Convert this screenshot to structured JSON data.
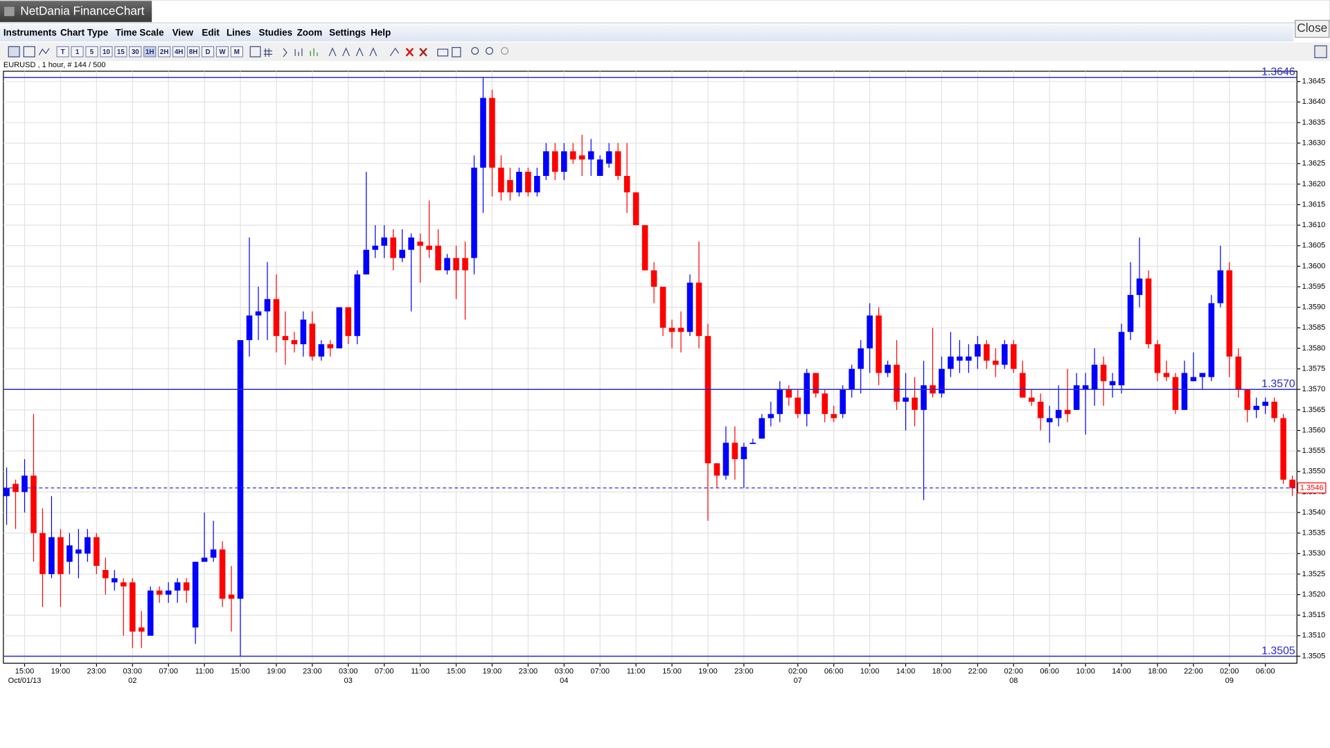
{
  "window": {
    "title": "NetDania FinanceChart",
    "close": "Close"
  },
  "menu": [
    "Instruments",
    "Chart Type",
    "Time Scale",
    "View",
    "Edit",
    "Lines",
    "Studies",
    "Zoom",
    "Settings",
    "Help"
  ],
  "toolbar": {
    "timescales": [
      "T",
      "1",
      "5",
      "10",
      "15",
      "30",
      "1H",
      "2H",
      "4H",
      "8H",
      "D",
      "W",
      "M"
    ]
  },
  "chart_data": {
    "type": "candlestick",
    "title": "EURUSD , 1 hour, # 144 / 500",
    "up_color": "#0000ff",
    "down_color": "#ff0000",
    "line_color": "#2a2acc",
    "grid": true,
    "categories": [
      null,
      null,
      "15:00",
      null,
      null,
      null,
      "19:00",
      null,
      null,
      null,
      "23:00",
      null,
      null,
      null,
      "03:00",
      null,
      null,
      null,
      "07:00",
      null,
      null,
      null,
      "11:00",
      null,
      null,
      null,
      "15:00",
      null,
      null,
      null,
      "19:00",
      null,
      null,
      null,
      "23:00",
      null,
      null,
      null,
      "03:00",
      null,
      null,
      null,
      "07:00",
      null,
      null,
      null,
      "11:00",
      null,
      null,
      null,
      "15:00",
      null,
      null,
      null,
      "19:00",
      null,
      null,
      null,
      "23:00",
      null,
      null,
      null,
      "03:00",
      null,
      null,
      null,
      "07:00",
      null,
      null,
      null,
      "11:00",
      null,
      null,
      null,
      "15:00",
      null,
      null,
      null,
      "19:00",
      null,
      null,
      null,
      "23:00",
      null,
      null,
      null,
      null,
      null,
      "02:00",
      null,
      null,
      null,
      "06:00",
      null,
      null,
      null,
      "10:00",
      null,
      null,
      null,
      "14:00",
      null,
      null,
      null,
      "18:00",
      null,
      null,
      null,
      "22:00",
      null,
      null,
      null,
      "02:00",
      null,
      null,
      null,
      "06:00",
      null,
      null,
      null,
      "10:00",
      null,
      null,
      null,
      "14:00",
      null,
      null,
      null,
      "18:00",
      null,
      null,
      null,
      "22:00",
      null,
      null,
      null,
      "02:00",
      null,
      null,
      null,
      "06:00",
      null,
      null,
      null
    ],
    "category_dates": [
      null,
      null,
      "Oct/01/13",
      null,
      null,
      null,
      null,
      null,
      null,
      null,
      null,
      null,
      null,
      null,
      "02",
      null,
      null,
      null,
      null,
      null,
      null,
      null,
      null,
      null,
      null,
      null,
      null,
      null,
      null,
      null,
      null,
      null,
      null,
      null,
      null,
      null,
      null,
      null,
      "03",
      null,
      null,
      null,
      null,
      null,
      null,
      null,
      null,
      null,
      null,
      null,
      null,
      null,
      null,
      null,
      null,
      null,
      null,
      null,
      null,
      null,
      null,
      null,
      "04",
      null,
      null,
      null,
      null,
      null,
      null,
      null,
      null,
      null,
      null,
      null,
      null,
      null,
      null,
      null,
      null,
      null,
      null,
      null,
      null,
      null,
      null,
      null,
      null,
      null,
      "07",
      null,
      null,
      null,
      null,
      null,
      null,
      null,
      null,
      null,
      null,
      null,
      null,
      null,
      null,
      null,
      null,
      null,
      null,
      null,
      null,
      null,
      null,
      null,
      "08",
      null,
      null,
      null,
      null,
      null,
      null,
      null,
      null,
      null,
      null,
      null,
      null,
      null,
      null,
      null,
      null,
      null,
      null,
      null,
      null,
      null,
      null,
      null,
      "09",
      null,
      null,
      null,
      null,
      null,
      null,
      null
    ],
    "open": [
      1.3544,
      1.3547,
      1.3545,
      1.3549,
      1.3535,
      1.3525,
      1.3534,
      1.3528,
      1.353,
      1.353,
      1.3534,
      1.3526,
      1.3523,
      1.3523,
      1.3523,
      1.3512,
      1.351,
      1.3521,
      1.352,
      1.3521,
      1.3523,
      1.3512,
      1.3528,
      1.3529,
      1.3531,
      1.352,
      1.3519,
      1.3582,
      1.3588,
      1.3589,
      1.3592,
      1.3583,
      1.3582,
      1.3581,
      1.3586,
      1.3578,
      1.3581,
      1.358,
      1.359,
      1.3583,
      1.3598,
      1.3604,
      1.3605,
      1.3607,
      1.3602,
      1.3604,
      1.3606,
      1.3605,
      1.3605,
      1.3599,
      1.3602,
      1.3602,
      1.3602,
      1.3624,
      1.3641,
      1.3624,
      1.3621,
      1.3618,
      1.3623,
      1.3618,
      1.3622,
      1.3628,
      1.3623,
      1.3628,
      1.3627,
      1.3626,
      1.3622,
      1.3625,
      1.3628,
      1.3622,
      1.3618,
      1.361,
      1.3599,
      1.3595,
      1.3585,
      1.3585,
      1.3584,
      1.3596,
      1.3583,
      1.3552,
      1.3549,
      1.3557,
      1.3553,
      1.3557,
      1.3558,
      1.3563,
      1.3564,
      1.357,
      1.3568,
      1.3564,
      1.3574,
      1.3569,
      1.3564,
      1.3564,
      1.357,
      1.3575,
      1.358,
      1.3588,
      1.3574,
      1.3576,
      1.3567,
      1.3568,
      1.3565,
      1.3571,
      1.3569,
      1.3575,
      1.3577,
      1.3577,
      1.3578,
      1.3581,
      1.3577,
      1.3576,
      1.3581,
      1.3574,
      1.3568,
      1.3567,
      1.3562,
      1.3563,
      1.3565,
      1.3565,
      1.357,
      1.357,
      1.3576,
      1.3571,
      1.3571,
      1.3584,
      1.3593,
      1.3597,
      1.3581,
      1.3574,
      1.3573,
      1.3565,
      1.3572,
      1.3573,
      1.3573,
      1.3591,
      1.3599,
      1.3578,
      1.357,
      1.3565,
      1.3566,
      1.3567,
      1.3563,
      1.3548
    ],
    "high": [
      1.3551,
      1.3548,
      1.3553,
      1.3564,
      1.3541,
      1.3544,
      1.3536,
      1.3535,
      1.3536,
      1.3536,
      1.3535,
      1.3529,
      1.3526,
      1.3524,
      1.3524,
      1.3516,
      1.3522,
      1.3522,
      1.3523,
      1.3524,
      1.3524,
      1.3528,
      1.354,
      1.3538,
      1.3533,
      1.3527,
      1.3582,
      1.3607,
      1.3595,
      1.3601,
      1.3598,
      1.3589,
      1.3584,
      1.3589,
      1.3589,
      1.3582,
      1.3582,
      1.359,
      1.359,
      1.3599,
      1.3623,
      1.361,
      1.361,
      1.3609,
      1.3609,
      1.3608,
      1.3608,
      1.3616,
      1.3609,
      1.3603,
      1.3605,
      1.3606,
      1.3627,
      1.3646,
      1.3643,
      1.3627,
      1.3624,
      1.3624,
      1.3624,
      1.3624,
      1.363,
      1.363,
      1.363,
      1.363,
      1.3632,
      1.3631,
      1.3627,
      1.363,
      1.363,
      1.363,
      1.3618,
      1.361,
      1.3601,
      1.3595,
      1.3587,
      1.3589,
      1.3598,
      1.3606,
      1.3586,
      1.3552,
      1.3561,
      1.3561,
      1.3557,
      1.3558,
      1.3564,
      1.3567,
      1.3572,
      1.3571,
      1.357,
      1.3575,
      1.3574,
      1.357,
      1.3566,
      1.3571,
      1.3576,
      1.3582,
      1.3591,
      1.359,
      1.3577,
      1.3582,
      1.3574,
      1.3573,
      1.3577,
      1.3585,
      1.3578,
      1.3584,
      1.3582,
      1.3581,
      1.3583,
      1.3582,
      1.358,
      1.3582,
      1.3582,
      1.3577,
      1.357,
      1.3569,
      1.3566,
      1.3571,
      1.3575,
      1.3574,
      1.3574,
      1.358,
      1.3578,
      1.3574,
      1.3586,
      1.3601,
      1.3607,
      1.3599,
      1.3582,
      1.3577,
      1.3574,
      1.3577,
      1.3579,
      1.3574,
      1.3593,
      1.3605,
      1.3601,
      1.358,
      1.357,
      1.3568,
      1.3568,
      1.3568,
      1.3564,
      1.3549
    ],
    "low": [
      1.3537,
      1.3536,
      1.354,
      1.3528,
      1.3517,
      1.3524,
      1.3517,
      1.3525,
      1.3524,
      1.3528,
      1.3525,
      1.352,
      1.3521,
      1.351,
      1.3507,
      1.3507,
      1.351,
      1.3518,
      1.3518,
      1.3518,
      1.3518,
      1.3508,
      1.3528,
      1.3528,
      1.3517,
      1.3511,
      1.3505,
      1.3578,
      1.3582,
      1.3582,
      1.3579,
      1.3576,
      1.3579,
      1.3578,
      1.3577,
      1.3577,
      1.3578,
      1.358,
      1.3581,
      1.3581,
      1.3598,
      1.3602,
      1.3602,
      1.3599,
      1.3601,
      1.3589,
      1.3596,
      1.3602,
      1.3599,
      1.3598,
      1.3592,
      1.3587,
      1.3598,
      1.3613,
      1.3617,
      1.3616,
      1.3616,
      1.3617,
      1.3617,
      1.3617,
      1.3621,
      1.3621,
      1.3621,
      1.3625,
      1.3622,
      1.3622,
      1.3622,
      1.3624,
      1.3621,
      1.3613,
      1.361,
      1.3599,
      1.3591,
      1.3583,
      1.358,
      1.3579,
      1.3583,
      1.358,
      1.3538,
      1.3546,
      1.3548,
      1.3548,
      1.3546,
      1.3557,
      1.3558,
      1.3561,
      1.3562,
      1.3566,
      1.3563,
      1.3561,
      1.3568,
      1.3562,
      1.3562,
      1.3563,
      1.3568,
      1.3569,
      1.3574,
      1.3571,
      1.3573,
      1.3565,
      1.356,
      1.3561,
      1.3543,
      1.3568,
      1.3568,
      1.3573,
      1.3574,
      1.3574,
      1.3575,
      1.3575,
      1.3573,
      1.3575,
      1.3574,
      1.3568,
      1.3566,
      1.356,
      1.3557,
      1.3561,
      1.3562,
      1.3565,
      1.3559,
      1.3566,
      1.3566,
      1.3568,
      1.3569,
      1.3582,
      1.359,
      1.358,
      1.3572,
      1.3572,
      1.3564,
      1.3565,
      1.3572,
      1.357,
      1.3572,
      1.359,
      1.3573,
      1.3568,
      1.3562,
      1.3563,
      1.3564,
      1.3562,
      1.3547,
      1.3544
    ],
    "close": [
      1.3546,
      1.3545,
      1.3549,
      1.3535,
      1.3525,
      1.3534,
      1.3525,
      1.3532,
      1.3531,
      1.3534,
      1.3527,
      1.3524,
      1.3524,
      1.3522,
      1.3511,
      1.3511,
      1.3521,
      1.352,
      1.3521,
      1.3523,
      1.3521,
      1.3528,
      1.3529,
      1.3531,
      1.3519,
      1.3519,
      1.3582,
      1.3588,
      1.3589,
      1.3592,
      1.3583,
      1.3582,
      1.3581,
      1.3587,
      1.3578,
      1.3581,
      1.358,
      1.359,
      1.3583,
      1.3598,
      1.3604,
      1.3605,
      1.3607,
      1.3602,
      1.3604,
      1.3607,
      1.3605,
      1.3604,
      1.3599,
      1.3602,
      1.3599,
      1.3599,
      1.3624,
      1.3641,
      1.3624,
      1.3618,
      1.3618,
      1.3623,
      1.3618,
      1.3622,
      1.3628,
      1.3623,
      1.3628,
      1.3626,
      1.3626,
      1.3628,
      1.3626,
      1.3628,
      1.3622,
      1.3618,
      1.361,
      1.3599,
      1.3595,
      1.3585,
      1.3584,
      1.3584,
      1.3596,
      1.3583,
      1.3552,
      1.3549,
      1.3557,
      1.3553,
      1.3556,
      1.3557,
      1.3563,
      1.3564,
      1.357,
      1.3568,
      1.3564,
      1.3574,
      1.3569,
      1.3564,
      1.3563,
      1.357,
      1.3575,
      1.358,
      1.3588,
      1.3574,
      1.3576,
      1.3567,
      1.3568,
      1.3565,
      1.3571,
      1.3569,
      1.3575,
      1.3578,
      1.3578,
      1.3578,
      1.3581,
      1.3577,
      1.3576,
      1.3581,
      1.3575,
      1.3568,
      1.3567,
      1.3563,
      1.3563,
      1.3565,
      1.3564,
      1.3571,
      1.3571,
      1.3576,
      1.3572,
      1.3572,
      1.3584,
      1.3593,
      1.3597,
      1.3581,
      1.3574,
      1.3573,
      1.3565,
      1.3574,
      1.3573,
      1.3574,
      1.3591,
      1.3599,
      1.3578,
      1.357,
      1.3565,
      1.3566,
      1.3567,
      1.3563,
      1.3548,
      1.3546
    ],
    "ylim": [
      1.35033,
      1.36475
    ],
    "yticks": [
      1.3505,
      {
        "value": 1.351,
        "label": "1.3510"
      },
      1.3515,
      {
        "value": 1.352,
        "label": "1.3520"
      },
      1.3525,
      {
        "value": 1.353,
        "label": "1.3530"
      },
      1.3535,
      {
        "value": 1.354,
        "label": "1.3540"
      },
      1.3545,
      {
        "value": 1.355,
        "label": "1.3550"
      },
      1.3555,
      {
        "value": 1.356,
        "label": "1.3560"
      },
      1.3565,
      {
        "value": 1.357,
        "label": "1.3570"
      },
      1.3575,
      {
        "value": 1.358,
        "label": "1.3580"
      },
      1.3585,
      {
        "value": 1.359,
        "label": "1.3590"
      },
      1.3595,
      {
        "value": 1.36,
        "label": "1.3600"
      },
      1.3605,
      {
        "value": 1.361,
        "label": "1.3610"
      },
      1.3615,
      {
        "value": 1.362,
        "label": "1.3620"
      },
      1.3625,
      {
        "value": 1.363,
        "label": "1.3630"
      },
      1.3635,
      {
        "value": 1.364,
        "label": "1.3640"
      },
      1.3645
    ],
    "lines": [
      1.3646,
      {
        "value": 1.357,
        "label": "1.3570"
      },
      1.3505
    ],
    "last_price": 1.3546
  }
}
